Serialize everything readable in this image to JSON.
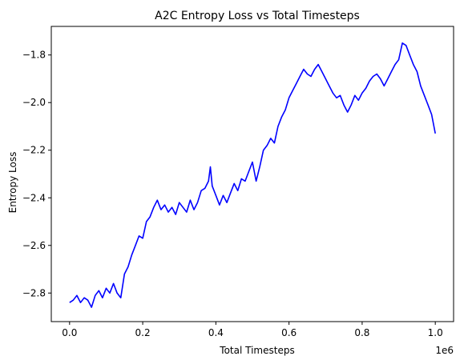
{
  "chart_data": {
    "type": "line",
    "title": "A2C Entropy Loss vs Total Timesteps",
    "xlabel": "Total Timesteps",
    "ylabel": "Entropy Loss",
    "x_offset_label": "1e6",
    "xlim": [
      -0.05,
      1.05
    ],
    "ylim": [
      -2.92,
      -1.68
    ],
    "x_ticks": [
      0.0,
      0.2,
      0.4,
      0.6,
      0.8,
      1.0
    ],
    "x_tick_labels": [
      "0.0",
      "0.2",
      "0.4",
      "0.6",
      "0.8",
      "1.0"
    ],
    "y_ticks": [
      -2.8,
      -2.6,
      -2.4,
      -2.2,
      -2.0,
      -1.8
    ],
    "y_tick_labels": [
      "−2.8",
      "−2.6",
      "−2.4",
      "−2.2",
      "−2.0",
      "−1.8"
    ],
    "grid": false,
    "series": [
      {
        "color": "#0000ff",
        "x": [
          0.0,
          0.01,
          0.02,
          0.03,
          0.04,
          0.05,
          0.06,
          0.07,
          0.08,
          0.09,
          0.1,
          0.11,
          0.12,
          0.13,
          0.14,
          0.15,
          0.16,
          0.17,
          0.18,
          0.19,
          0.2,
          0.21,
          0.22,
          0.23,
          0.24,
          0.25,
          0.26,
          0.27,
          0.28,
          0.29,
          0.3,
          0.31,
          0.32,
          0.33,
          0.34,
          0.35,
          0.36,
          0.37,
          0.38,
          0.385,
          0.39,
          0.4,
          0.41,
          0.42,
          0.43,
          0.44,
          0.45,
          0.46,
          0.47,
          0.48,
          0.49,
          0.5,
          0.51,
          0.52,
          0.53,
          0.54,
          0.55,
          0.56,
          0.57,
          0.58,
          0.59,
          0.6,
          0.61,
          0.62,
          0.63,
          0.64,
          0.65,
          0.66,
          0.67,
          0.68,
          0.69,
          0.7,
          0.71,
          0.72,
          0.73,
          0.74,
          0.75,
          0.76,
          0.77,
          0.78,
          0.79,
          0.8,
          0.81,
          0.82,
          0.83,
          0.84,
          0.85,
          0.86,
          0.87,
          0.88,
          0.89,
          0.9,
          0.91,
          0.92,
          0.93,
          0.94,
          0.95,
          0.96,
          0.97,
          0.98,
          0.99,
          1.0
        ],
        "y": [
          -2.84,
          -2.83,
          -2.81,
          -2.84,
          -2.82,
          -2.83,
          -2.86,
          -2.81,
          -2.79,
          -2.82,
          -2.78,
          -2.8,
          -2.76,
          -2.8,
          -2.82,
          -2.72,
          -2.69,
          -2.64,
          -2.6,
          -2.56,
          -2.57,
          -2.5,
          -2.48,
          -2.44,
          -2.41,
          -2.45,
          -2.43,
          -2.46,
          -2.44,
          -2.47,
          -2.42,
          -2.44,
          -2.46,
          -2.41,
          -2.45,
          -2.42,
          -2.37,
          -2.36,
          -2.33,
          -2.27,
          -2.35,
          -2.39,
          -2.43,
          -2.39,
          -2.42,
          -2.38,
          -2.34,
          -2.37,
          -2.32,
          -2.33,
          -2.29,
          -2.25,
          -2.33,
          -2.27,
          -2.2,
          -2.18,
          -2.15,
          -2.17,
          -2.1,
          -2.06,
          -2.03,
          -1.98,
          -1.95,
          -1.92,
          -1.89,
          -1.86,
          -1.88,
          -1.89,
          -1.86,
          -1.84,
          -1.87,
          -1.9,
          -1.93,
          -1.96,
          -1.98,
          -1.97,
          -2.01,
          -2.04,
          -2.01,
          -1.97,
          -1.99,
          -1.96,
          -1.94,
          -1.91,
          -1.89,
          -1.88,
          -1.9,
          -1.93,
          -1.9,
          -1.87,
          -1.84,
          -1.82,
          -1.75,
          -1.76,
          -1.8,
          -1.84,
          -1.87,
          -1.93,
          -1.97,
          -2.01,
          -2.05,
          -2.13
        ]
      }
    ]
  }
}
